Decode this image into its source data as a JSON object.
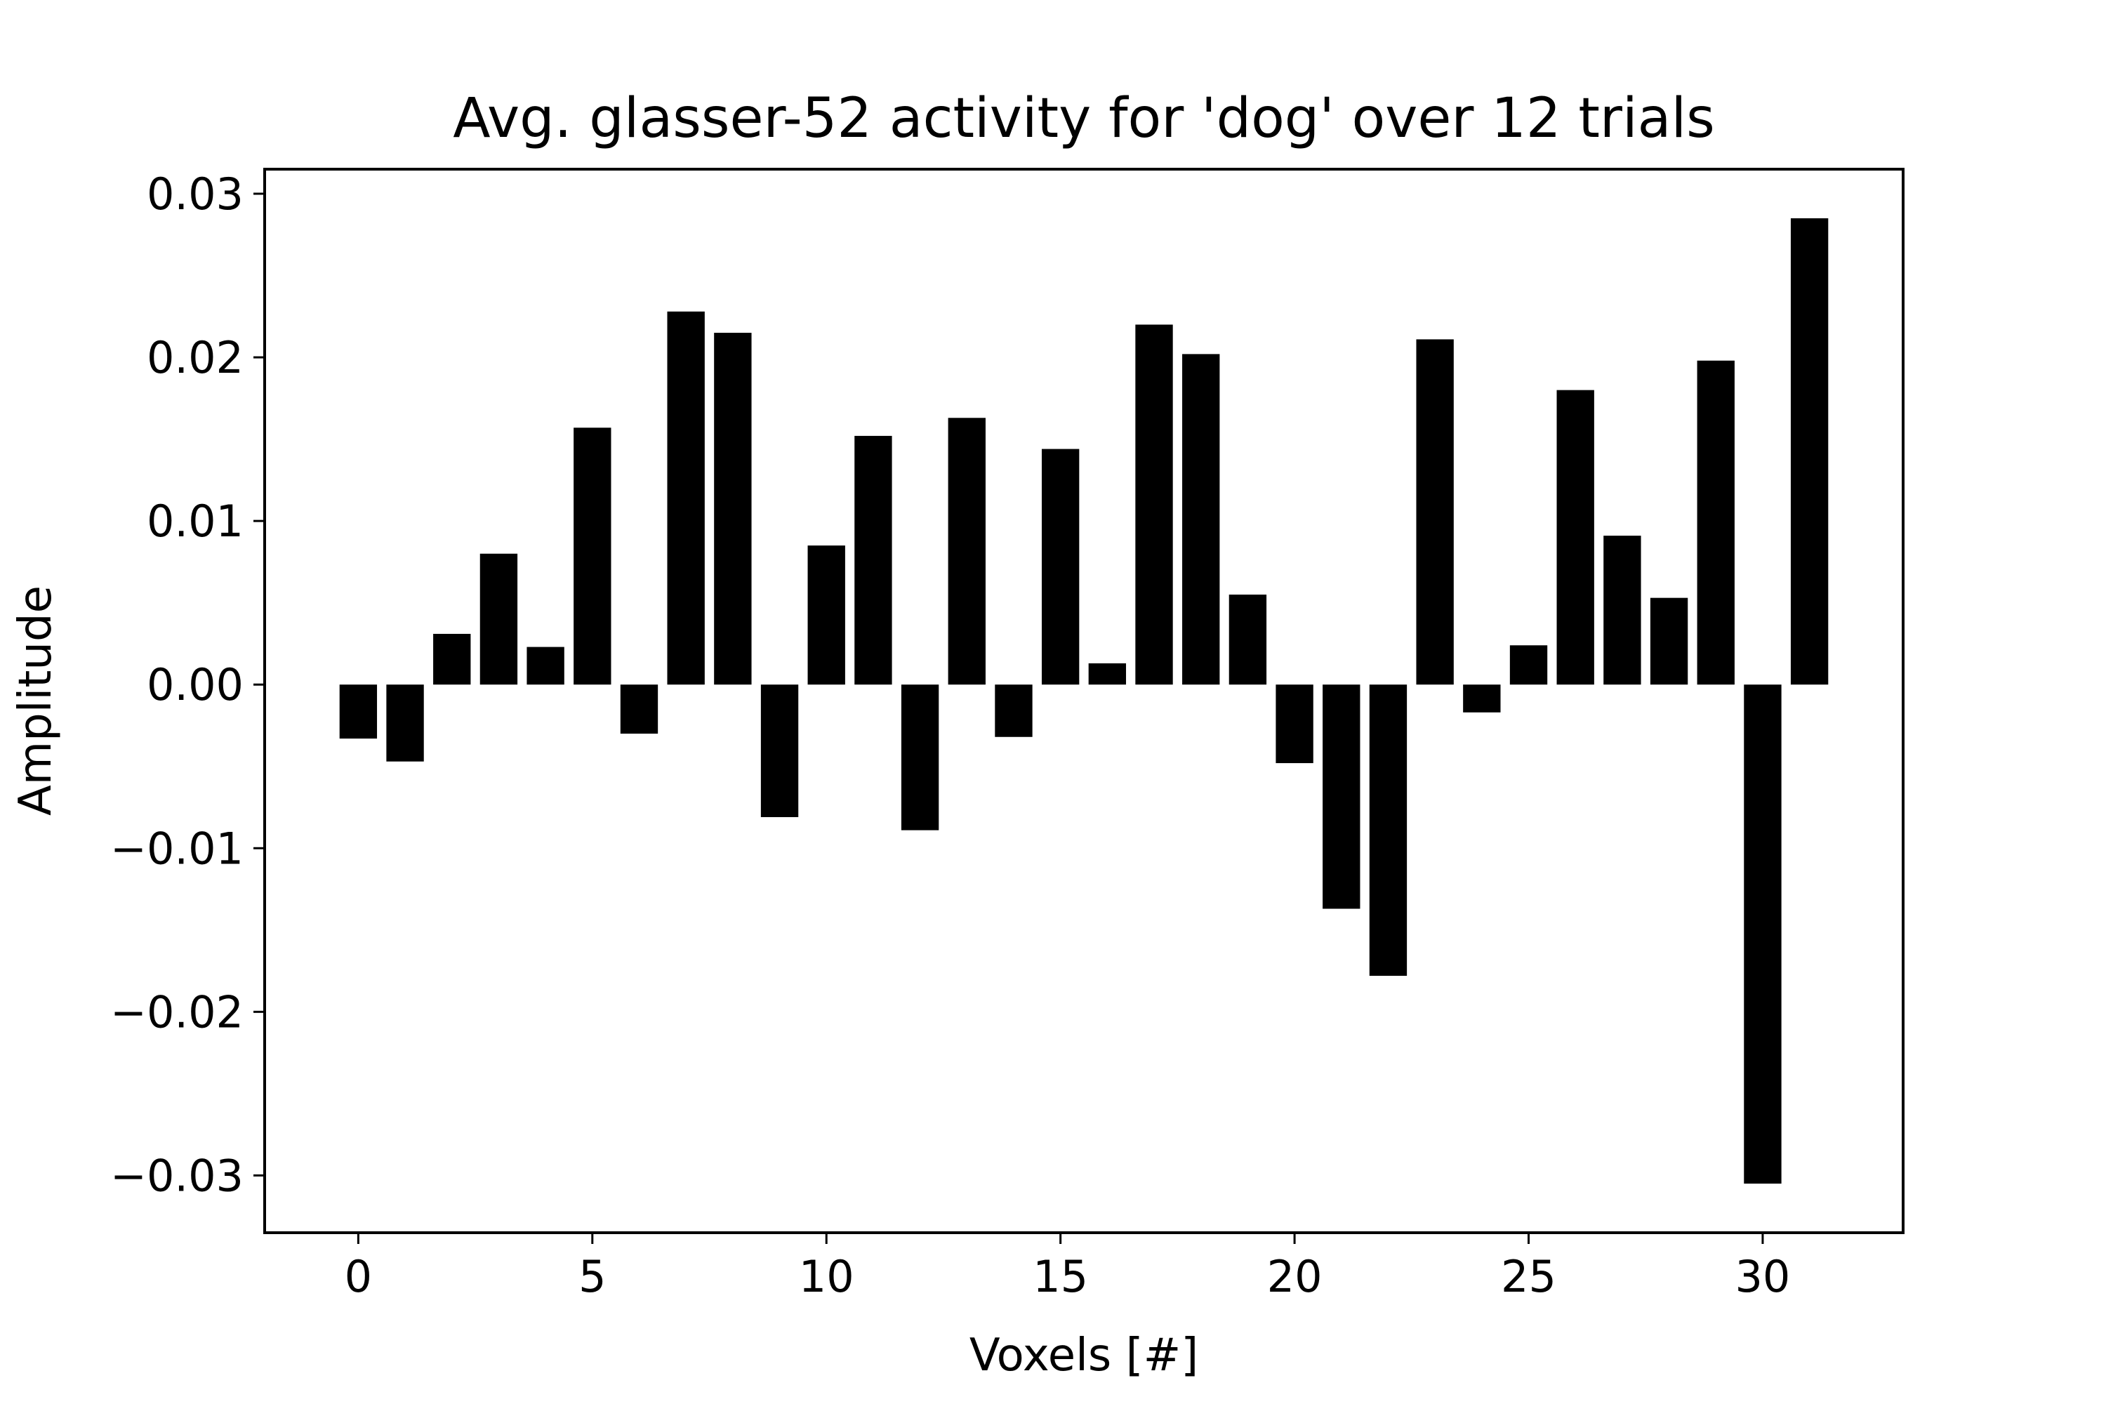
{
  "chart_data": {
    "type": "bar",
    "title": "Avg. glasser-52 activity for 'dog' over 12 trials",
    "xlabel": "Voxels [#]",
    "ylabel": "Amplitude",
    "x": [
      0,
      1,
      2,
      3,
      4,
      5,
      6,
      7,
      8,
      9,
      10,
      11,
      12,
      13,
      14,
      15,
      16,
      17,
      18,
      19,
      20,
      21,
      22,
      23,
      24,
      25,
      26,
      27,
      28,
      29,
      30,
      31
    ],
    "values": [
      -0.0033,
      -0.0047,
      0.0031,
      0.008,
      0.0023,
      0.0157,
      -0.003,
      0.0228,
      0.0215,
      -0.0081,
      0.0085,
      0.0152,
      -0.0089,
      0.0163,
      -0.0032,
      0.0144,
      0.0013,
      0.022,
      0.0202,
      0.0055,
      -0.0048,
      -0.0137,
      -0.0178,
      0.0211,
      -0.0017,
      0.0024,
      0.018,
      0.0091,
      0.0053,
      0.0198,
      -0.0305,
      0.0285
    ],
    "xlim": [
      -2,
      33
    ],
    "ylim": [
      -0.0335,
      0.0315
    ],
    "xticks": [
      0,
      5,
      10,
      15,
      20,
      25,
      30
    ],
    "xtick_labels": [
      "0",
      "5",
      "10",
      "15",
      "20",
      "25",
      "30"
    ],
    "yticks": [
      -0.03,
      -0.02,
      -0.01,
      0.0,
      0.01,
      0.02,
      0.03
    ],
    "ytick_labels": [
      "−0.03",
      "−0.02",
      "−0.01",
      "0.00",
      "0.01",
      "0.02",
      "0.03"
    ],
    "bar_color": "#000000",
    "grid": false,
    "legend": "none"
  }
}
